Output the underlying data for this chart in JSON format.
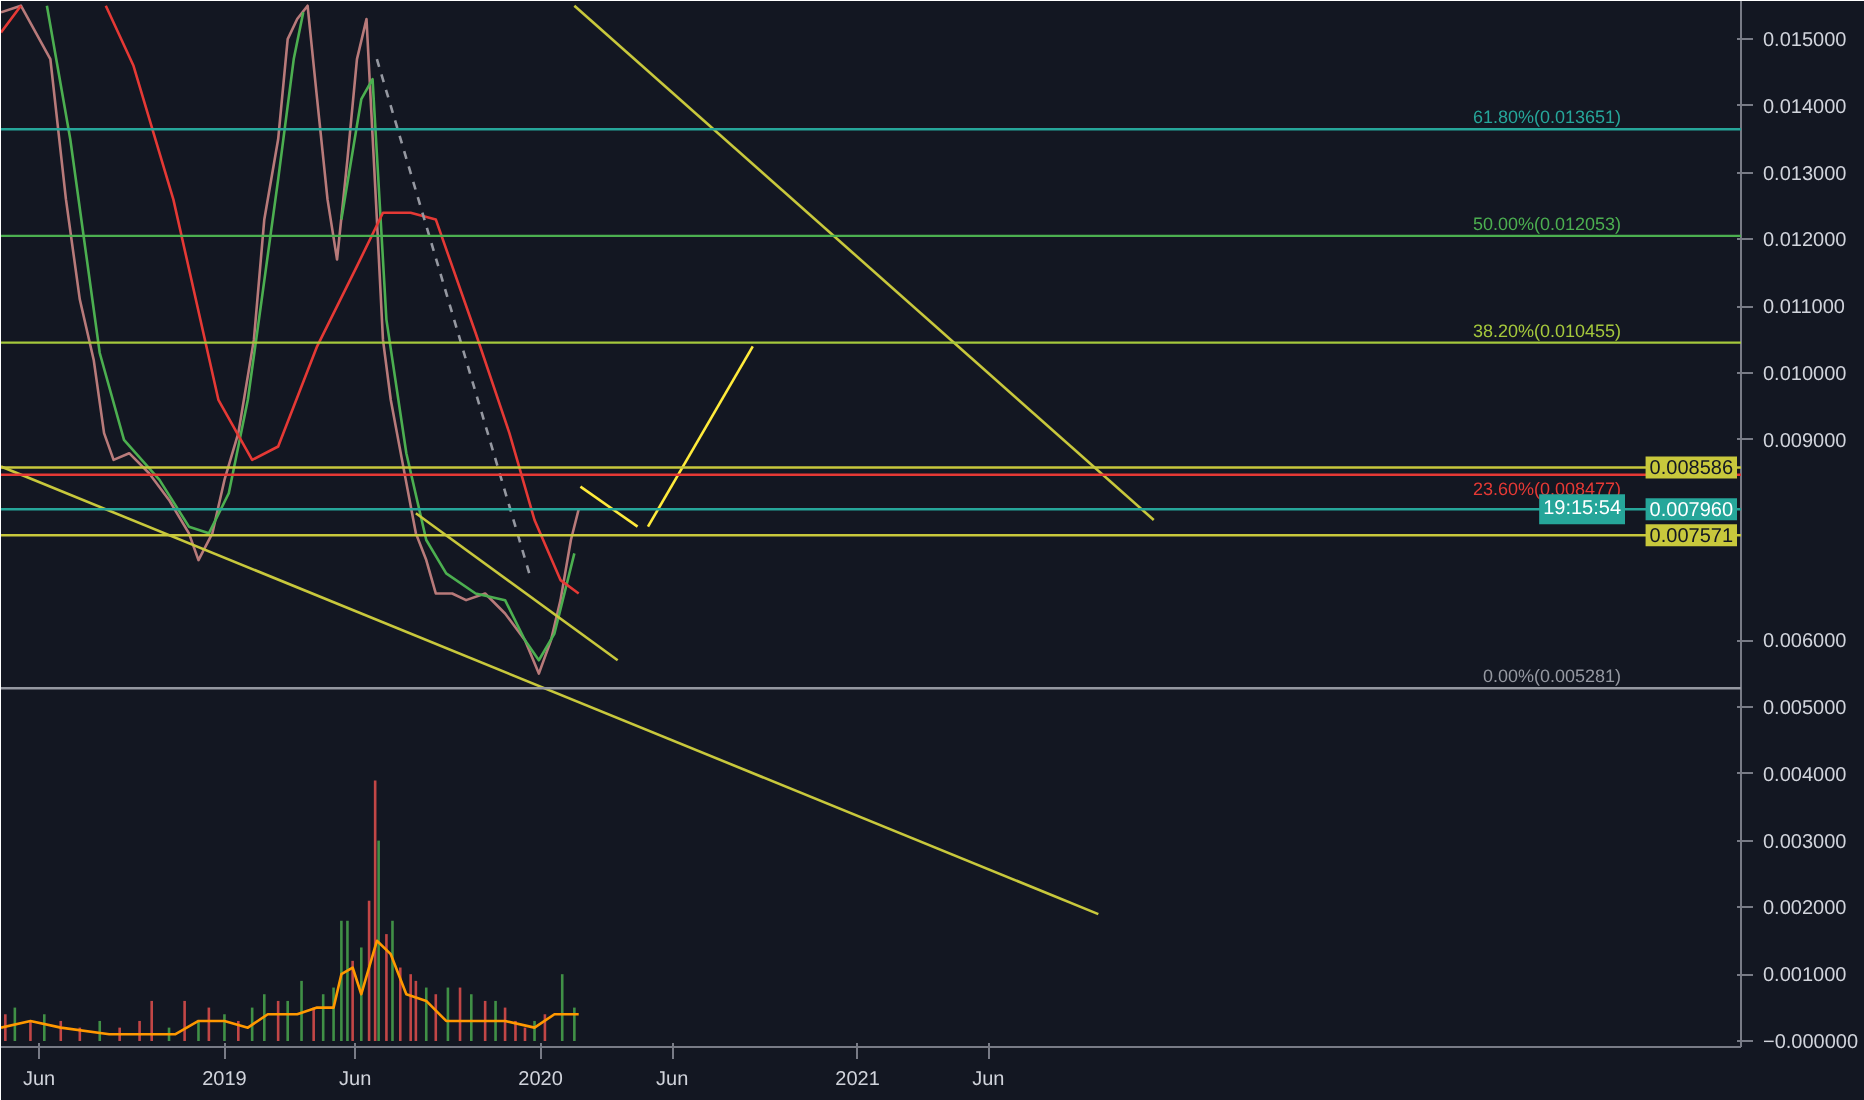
{
  "chart_data": {
    "type": "line",
    "xlim": [
      "2018-04-18",
      "2023-10-18"
    ],
    "xticks": [
      {
        "value": "2018-06-01",
        "label": "Jun"
      },
      {
        "value": "2019-01-01",
        "label": "2019"
      },
      {
        "value": "2019-06-01",
        "label": "Jun"
      },
      {
        "value": "2020-01-01",
        "label": "2020"
      },
      {
        "value": "2020-06-01",
        "label": "Jun"
      },
      {
        "value": "2021-01-01",
        "label": "2021"
      },
      {
        "value": "2021-06-01",
        "label": "Jun"
      }
    ],
    "ylim": [
      -9e-05,
      0.01557
    ],
    "yticks": [
      {
        "value": 0.015,
        "label": "0.015000"
      },
      {
        "value": 0.014,
        "label": "0.014000"
      },
      {
        "value": 0.013,
        "label": "0.013000"
      },
      {
        "value": 0.012,
        "label": "0.012000"
      },
      {
        "value": 0.011,
        "label": "0.011000"
      },
      {
        "value": 0.01,
        "label": "0.010000"
      },
      {
        "value": 0.009,
        "label": "0.009000"
      },
      {
        "value": 0.006,
        "label": "0.006000"
      },
      {
        "value": 0.005,
        "label": "0.005000"
      },
      {
        "value": 0.004,
        "label": "0.004000"
      },
      {
        "value": 0.003,
        "label": "0.003000"
      },
      {
        "value": 0.002,
        "label": "0.002000"
      },
      {
        "value": 0.001,
        "label": "0.001000"
      },
      {
        "value": 0,
        "label": "−0.000000"
      }
    ],
    "series": [
      {
        "type": "bar",
        "x": [
          "2018-04-23",
          "2018-05-04",
          "2018-05-22",
          "2018-06-07",
          "2018-06-26",
          "2018-07-18",
          "2018-08-10",
          "2018-09-02",
          "2018-09-25",
          "2018-10-09",
          "2018-10-29",
          "2018-11-16",
          "2018-12-02",
          "2018-12-14",
          "2019-01-01",
          "2019-01-17",
          "2019-02-02",
          "2019-02-16",
          "2019-03-04",
          "2019-03-15",
          "2019-03-31",
          "2019-04-14",
          "2019-04-25",
          "2019-05-07",
          "2019-05-16",
          "2019-05-23",
          "2019-05-29",
          "2019-06-08",
          "2019-06-17",
          "2019-06-24",
          "2019-06-28",
          "2019-07-07",
          "2019-07-14",
          "2019-07-23",
          "2019-08-04",
          "2019-08-10",
          "2019-08-22",
          "2019-09-02",
          "2019-09-16",
          "2019-09-30",
          "2019-10-13",
          "2019-10-29",
          "2019-11-10",
          "2019-11-21",
          "2019-12-03",
          "2019-12-14",
          "2019-12-25",
          "2020-01-06",
          "2020-01-26",
          "2020-02-09"
        ],
        "values": [
          0.0004,
          0.0005,
          0.0003,
          0.0004,
          0.0003,
          0.0002,
          0.0003,
          0.0002,
          0.0003,
          0.0006,
          0.0002,
          0.0006,
          0.0003,
          0.0005,
          0.0004,
          0.0003,
          0.0005,
          0.0007,
          0.0006,
          0.0006,
          0.0009,
          0.0005,
          0.0007,
          0.0008,
          0.0018,
          0.0018,
          0.0012,
          0.0014,
          0.0021,
          0.0039,
          0.003,
          0.0016,
          0.0018,
          0.0011,
          0.001,
          0.0009,
          0.0008,
          0.0007,
          0.0008,
          0.0008,
          0.0007,
          0.0006,
          0.0006,
          0.0005,
          0.0003,
          0.0002,
          0.0003,
          0.0004,
          0.001,
          0.0005
        ],
        "colors": [
          "#ef5350",
          "#4caf50",
          "#ef5350",
          "#4caf50",
          "#ef5350",
          "#ef5350",
          "#4caf50",
          "#ef5350",
          "#ef5350",
          "#ef5350",
          "#4caf50",
          "#ef5350",
          "#4caf50",
          "#ef5350",
          "#4caf50",
          "#ef5350",
          "#4caf50",
          "#4caf50",
          "#ef5350",
          "#4caf50",
          "#4caf50",
          "#ef5350",
          "#4caf50",
          "#4caf50",
          "#4caf50",
          "#4caf50",
          "#ef5350",
          "#4caf50",
          "#ef5350",
          "#ef5350",
          "#4caf50",
          "#ef5350",
          "#4caf50",
          "#ef5350",
          "#ef5350",
          "#ef5350",
          "#4caf50",
          "#ef5350",
          "#4caf50",
          "#ef5350",
          "#4caf50",
          "#ef5350",
          "#4caf50",
          "#ef5350",
          "#ef5350",
          "#ef5350",
          "#4caf50",
          "#ef5350",
          "#4caf50",
          "#4caf50"
        ]
      },
      {
        "color": "#ff9800",
        "x": [
          "2018-04-18",
          "2018-05-22",
          "2018-06-26",
          "2018-08-21",
          "2018-10-18",
          "2018-11-05",
          "2018-12-02",
          "2019-01-01",
          "2019-01-28",
          "2019-02-20",
          "2019-03-26",
          "2019-04-18",
          "2019-05-07",
          "2019-05-16",
          "2019-05-29",
          "2019-06-08",
          "2019-06-26",
          "2019-07-12",
          "2019-07-30",
          "2019-08-22",
          "2019-09-14",
          "2019-10-07",
          "2019-10-29",
          "2019-11-21",
          "2019-12-25",
          "2020-01-17",
          "2020-02-14"
        ],
        "values": [
          0.0002,
          0.0003,
          0.0002,
          0.0001,
          0.0001,
          0.0001,
          0.0003,
          0.0003,
          0.0002,
          0.0004,
          0.0004,
          0.0005,
          0.0005,
          0.001,
          0.0011,
          0.0007,
          0.0015,
          0.0013,
          0.0007,
          0.0006,
          0.0003,
          0.0003,
          0.0003,
          0.0003,
          0.0002,
          0.0004,
          0.0004
        ]
      },
      {
        "color": "#b87a7a",
        "x": [
          "2018-04-18",
          "2018-05-11",
          "2018-06-14",
          "2018-07-02",
          "2018-07-18",
          "2018-08-03",
          "2018-08-15",
          "2018-08-26",
          "2018-09-13",
          "2018-10-06",
          "2018-10-29",
          "2018-11-21",
          "2018-12-02",
          "2018-12-18",
          "2019-01-01",
          "2019-01-17",
          "2019-02-04",
          "2019-02-16",
          "2019-03-04",
          "2019-03-15",
          "2019-03-26",
          "2019-04-07",
          "2019-04-18",
          "2019-04-30",
          "2019-05-11",
          "2019-05-23",
          "2019-06-03",
          "2019-06-14",
          "2019-06-26",
          "2019-07-03",
          "2019-07-12",
          "2019-07-25",
          "2019-08-10",
          "2019-08-22",
          "2019-09-02",
          "2019-09-21",
          "2019-10-07",
          "2019-10-29",
          "2019-11-21",
          "2019-12-14",
          "2019-12-30",
          "2020-01-13",
          "2020-01-24",
          "2020-02-05",
          "2020-02-14"
        ],
        "values": [
          0.0154,
          0.0155,
          0.0147,
          0.0126,
          0.0111,
          0.0102,
          0.0091,
          0.0087,
          0.0088,
          0.0085,
          0.0081,
          0.0076,
          0.0072,
          0.0076,
          0.0084,
          0.0091,
          0.0105,
          0.0123,
          0.0135,
          0.015,
          0.0153,
          0.0155,
          0.0141,
          0.0126,
          0.0117,
          0.0132,
          0.0147,
          0.0153,
          0.0123,
          0.0105,
          0.0096,
          0.0087,
          0.0076,
          0.0072,
          0.0067,
          0.0067,
          0.0066,
          0.0067,
          0.0064,
          0.006,
          0.0055,
          0.006,
          0.0066,
          0.0075,
          0.00796
        ]
      },
      {
        "color": "#4caf50",
        "x": [
          "2018-06-10",
          "2018-07-07",
          "2018-08-10",
          "2018-09-07",
          "2018-10-18",
          "2018-11-21",
          "2018-12-14",
          "2019-01-06",
          "2019-01-28",
          "2019-02-13",
          "2019-03-04",
          "2019-03-22",
          "2019-04-02",
          "2019-04-10",
          "2019-05-16",
          "2019-06-08",
          "2019-06-21",
          "2019-07-07",
          "2019-07-30",
          "2019-08-22",
          "2019-09-14",
          "2019-10-18",
          "2019-11-21",
          "2019-12-14",
          "2019-12-30",
          "2020-01-17",
          "2020-02-09"
        ],
        "values": [
          0.0155,
          0.0135,
          0.0103,
          0.009,
          0.0084,
          0.0077,
          0.0076,
          0.0082,
          0.0096,
          0.0111,
          0.0129,
          0.0147,
          0.0154,
          null,
          0.0123,
          0.0141,
          0.0144,
          0.0108,
          0.0088,
          0.0075,
          0.007,
          0.0067,
          0.0066,
          0.006,
          0.0057,
          0.0061,
          0.0073
        ]
      },
      {
        "color": "#e53935",
        "x": [
          "2018-04-18",
          "2018-05-11",
          "2018-06-01",
          "2018-08-17",
          "2018-09-18",
          "2018-11-03",
          "2018-12-25",
          "2019-02-02",
          "2019-03-04",
          "2019-04-18",
          "2019-06-03",
          "2019-07-03",
          "2019-08-04",
          "2019-09-02",
          "2019-10-18",
          "2019-11-26",
          "2019-12-25",
          "2020-01-24",
          "2020-02-14"
        ],
        "values": [
          0.0151,
          0.0155,
          null,
          0.0155,
          0.0146,
          0.0126,
          0.0096,
          0.0087,
          0.0089,
          0.0104,
          0.0116,
          0.0124,
          0.0124,
          0.0123,
          0.0106,
          0.0091,
          0.0078,
          0.0069,
          0.0067
        ]
      },
      {
        "color": "#c8c83c",
        "x": [
          "2020-02-09",
          "2021-12-09"
        ],
        "values": [
          0.0155,
          0.0078
        ]
      },
      {
        "color": "#c8c83c",
        "x": [
          "2018-04-18",
          "2021-10-06"
        ],
        "values": [
          0.0086,
          0.0019
        ]
      },
      {
        "color": "#c8c83c",
        "x": [
          "2019-08-10",
          "2020-03-30"
        ],
        "values": [
          0.0079,
          0.0057
        ]
      },
      {
        "color": "#9598a1",
        "line_style": "dashed",
        "x": [
          "2019-06-26",
          "2019-12-19"
        ],
        "values": [
          0.0147,
          0.007
        ]
      },
      {
        "color": "#ffeb3b",
        "x": [
          "2020-02-16",
          "2020-04-22"
        ],
        "values": [
          0.0083,
          0.0077
        ]
      },
      {
        "color": "#ffeb3b",
        "x": [
          "2020-05-04",
          "2020-09-02"
        ],
        "values": [
          0.0077,
          0.0104
        ]
      }
    ],
    "ref_lines": [
      {
        "axis": "y",
        "value": 0.013651,
        "label": "61.80%(0.013651)",
        "color": "#26a69a"
      },
      {
        "axis": "y",
        "value": 0.012053,
        "label": "50.00%(0.012053)",
        "color": "#4caf50"
      },
      {
        "axis": "y",
        "value": 0.010455,
        "label": "38.20%(0.010455)",
        "color": "#a5c83c"
      },
      {
        "axis": "y",
        "value": 0.008477,
        "label": "23.60%(0.008477)",
        "color": "#e53935"
      },
      {
        "axis": "y",
        "value": 0.005281,
        "label": "0.00%(0.005281)",
        "color": "#9598a1"
      },
      {
        "axis": "y",
        "value": 0.008586,
        "color": "#c8c83c"
      },
      {
        "axis": "y",
        "value": 0.00796,
        "color": "#26a69a"
      },
      {
        "axis": "y",
        "value": 0.007571,
        "color": "#c8c83c"
      }
    ],
    "annotations": [
      {
        "text": "0.008586",
        "x": "2023-10-18",
        "y": 0.008586
      },
      {
        "text": "0.007960",
        "x": "2023-10-18",
        "y": 0.00796
      },
      "19:15:54",
      {
        "text": "0.007571",
        "x": "2023-10-18",
        "y": 0.007571
      }
    ]
  }
}
